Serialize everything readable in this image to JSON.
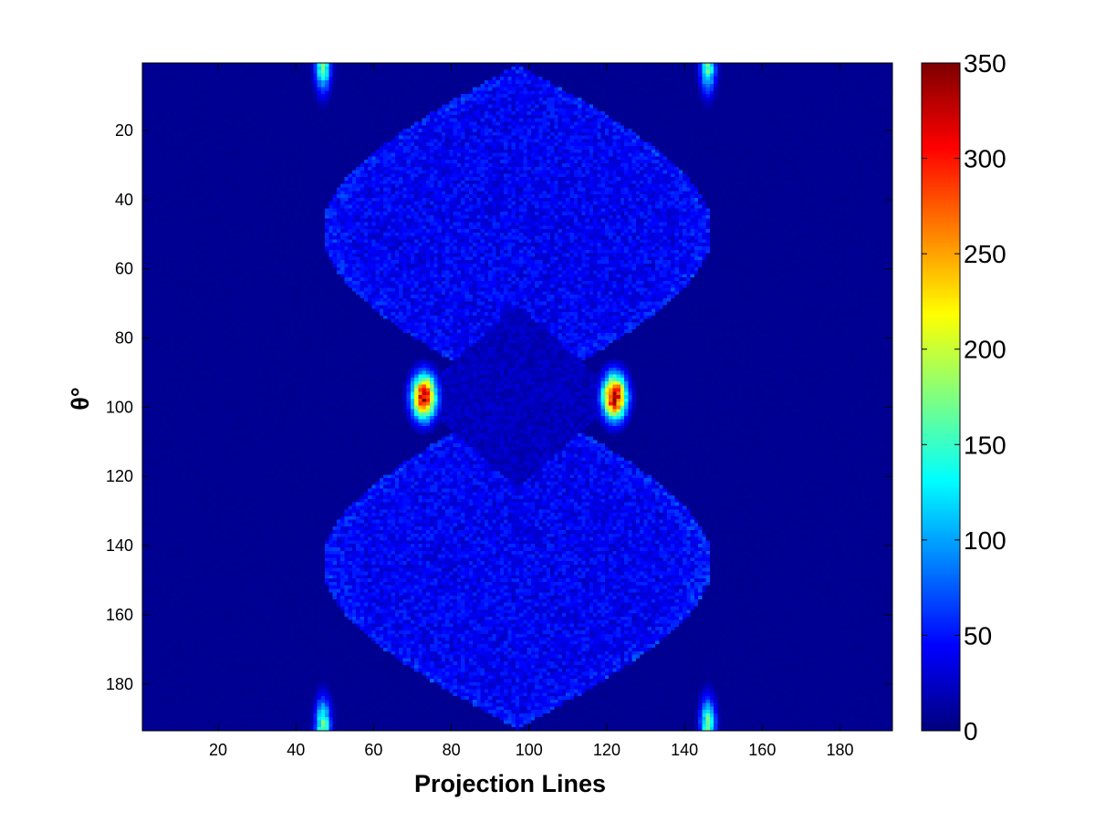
{
  "chart_data": {
    "type": "heatmap",
    "title": "",
    "xlabel": "Projection Lines",
    "ylabel": "θ°",
    "xlim": [
      0.5,
      193.5
    ],
    "ylim": [
      0.5,
      193.5
    ],
    "y_reversed": true,
    "x_ticks": [
      20,
      40,
      60,
      80,
      100,
      120,
      140,
      160,
      180
    ],
    "y_ticks": [
      20,
      40,
      60,
      80,
      100,
      120,
      140,
      160,
      180
    ],
    "colormap": "jet",
    "color_range": [
      0,
      350
    ],
    "colorbar_ticks": [
      0,
      50,
      100,
      150,
      200,
      250,
      300,
      350
    ],
    "grid": false,
    "background_value": 5,
    "structures": {
      "center_x": 97,
      "center_y": 97,
      "outer_lobe_halfwidth": 50,
      "inner_diamond_halfwidth": 25,
      "lobe_value": 40,
      "inner_diamond_value": 22,
      "hotspots": [
        {
          "x": 73,
          "y": 97,
          "value": 340
        },
        {
          "x": 122,
          "y": 97,
          "value": 340
        },
        {
          "x": 47,
          "y": 1,
          "value": 170
        },
        {
          "x": 146,
          "y": 1,
          "value": 170
        },
        {
          "x": 47,
          "y": 192,
          "value": 170
        },
        {
          "x": 146,
          "y": 192,
          "value": 170
        }
      ]
    }
  }
}
